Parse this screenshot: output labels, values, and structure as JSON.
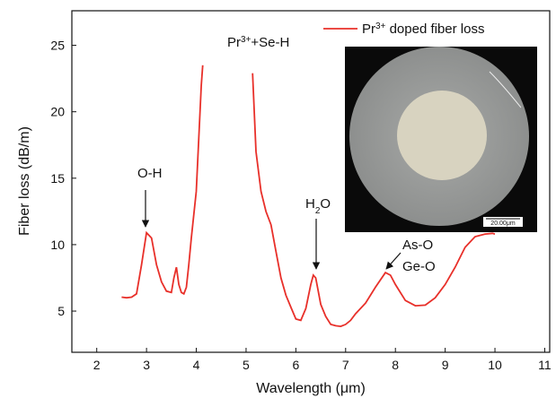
{
  "chart_data": {
    "type": "line",
    "x_label": "Wavelength (μm)",
    "y_label": "Fiber loss (dB/m)",
    "xlim": [
      1.5,
      11.1
    ],
    "ylim": [
      1.9,
      27.6
    ],
    "xticks": [
      2,
      3,
      4,
      5,
      6,
      7,
      8,
      9,
      10,
      11
    ],
    "yticks": [
      5,
      10,
      15,
      20,
      25
    ],
    "legend": "upper right",
    "x": [
      2.5,
      2.6,
      2.7,
      2.8,
      2.9,
      3.0,
      3.1,
      3.2,
      3.3,
      3.4,
      3.5,
      3.55,
      3.6,
      3.65,
      3.7,
      3.75,
      3.8,
      3.85,
      3.9,
      4.0,
      4.05,
      4.1,
      4.13,
      4.6,
      5.13,
      5.2,
      5.3,
      5.4,
      5.5,
      5.6,
      5.7,
      5.8,
      5.9,
      6.0,
      6.1,
      6.2,
      6.3,
      6.35,
      6.4,
      6.5,
      6.6,
      6.7,
      6.8,
      6.9,
      7.0,
      7.1,
      7.2,
      7.4,
      7.6,
      7.8,
      7.9,
      8.0,
      8.2,
      8.4,
      8.6,
      8.8,
      9.0,
      9.2,
      9.4,
      9.6,
      9.8,
      9.95,
      10.0
    ],
    "series": [
      {
        "name": [
          {
            "t": "Pr"
          },
          {
            "t": "3+",
            "sup": true
          },
          {
            "t": " doped fiber loss"
          }
        ],
        "color": "#e8302a",
        "values": [
          6.05,
          6.0,
          6.05,
          6.3,
          8.5,
          10.9,
          10.5,
          8.5,
          7.2,
          6.5,
          6.4,
          7.5,
          8.3,
          7.0,
          6.4,
          6.3,
          6.8,
          8.5,
          10.5,
          14,
          18,
          22,
          23.5,
          null,
          22.9,
          17,
          14,
          12.5,
          11.5,
          9.5,
          7.5,
          6.2,
          5.3,
          4.4,
          4.3,
          5.2,
          7.0,
          7.7,
          7.5,
          5.5,
          4.6,
          4.0,
          3.9,
          3.85,
          4.0,
          4.3,
          4.8,
          5.6,
          6.8,
          7.9,
          7.7,
          7.0,
          5.8,
          5.4,
          5.45,
          6.0,
          7.0,
          8.3,
          9.8,
          10.6,
          10.8,
          10.85,
          10.8
        ]
      }
    ],
    "annotations": [
      [
        {
          "t": "O-H"
        }
      ],
      [
        {
          "t": "Pr"
        },
        {
          "t": "3+",
          "sup": true
        },
        {
          "t": "+Se-H"
        }
      ],
      [
        {
          "t": "H"
        },
        {
          "t": "2",
          "sub": true
        },
        {
          "t": "O"
        }
      ],
      [
        {
          "t": "As-O"
        }
      ],
      [
        {
          "t": "Ge-O"
        }
      ]
    ],
    "inset_scale_label": "20.00μm"
  }
}
